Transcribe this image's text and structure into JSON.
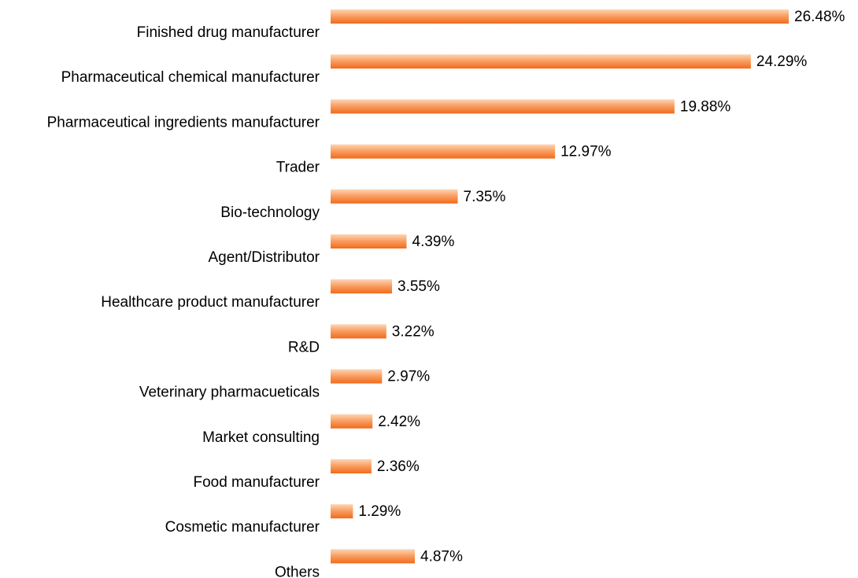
{
  "chart_data": {
    "type": "bar",
    "orientation": "horizontal",
    "categories": [
      "Finished drug manufacturer",
      "Pharmaceutical chemical manufacturer",
      "Pharmaceutical ingredients manufacturer",
      "Trader",
      "Bio-technology",
      "Agent/Distributor",
      "Healthcare product manufacturer",
      "R&D",
      "Veterinary pharmacueticals",
      "Market consulting",
      "Food manufacturer",
      "Cosmetic manufacturer",
      "Others"
    ],
    "values": [
      26.48,
      24.29,
      19.88,
      12.97,
      7.35,
      4.39,
      3.55,
      3.22,
      2.97,
      2.42,
      2.36,
      1.29,
      4.87
    ],
    "value_labels": [
      "26.48%",
      "24.29%",
      "19.88%",
      "12.97%",
      "7.35%",
      "4.39%",
      "3.55%",
      "3.22%",
      "2.97%",
      "2.42%",
      "2.36%",
      "1.29%",
      "4.87%"
    ],
    "title": "",
    "xlabel": "",
    "ylabel": "",
    "xlim": [
      0,
      26.48
    ],
    "grid": false,
    "legend": "none",
    "colors": {
      "bar_light": "#fdd5b4",
      "bar_mid": "#f9a064",
      "bar_dark": "#f26a1b"
    }
  }
}
